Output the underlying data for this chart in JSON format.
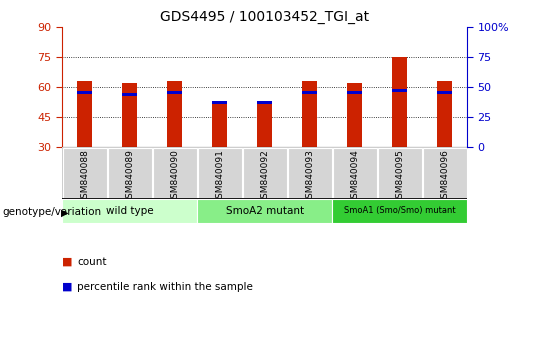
{
  "title": "GDS4495 / 100103452_TGI_at",
  "samples": [
    "GSM840088",
    "GSM840089",
    "GSM840090",
    "GSM840091",
    "GSM840092",
    "GSM840093",
    "GSM840094",
    "GSM840095",
    "GSM840096"
  ],
  "count_values": [
    63,
    62,
    63,
    52,
    52,
    63,
    62,
    75,
    63
  ],
  "percentile_values": [
    57,
    56,
    57,
    52,
    52,
    57,
    57,
    58,
    57
  ],
  "ylim_left": [
    30,
    90
  ],
  "yticks_left": [
    30,
    45,
    60,
    75,
    90
  ],
  "ylim_right": [
    0,
    100
  ],
  "yticks_right": [
    0,
    25,
    50,
    75,
    100
  ],
  "grid_values": [
    45,
    60,
    75
  ],
  "groups": [
    {
      "label": "wild type",
      "start": 0,
      "end": 3,
      "color": "#ccffcc"
    },
    {
      "label": "SmoA2 mutant",
      "start": 3,
      "end": 6,
      "color": "#88ee88"
    },
    {
      "label": "SmoA1 (Smo/Smo) mutant",
      "start": 6,
      "end": 9,
      "color": "#33cc33"
    }
  ],
  "bar_color": "#cc2200",
  "percentile_color": "#0000cc",
  "bar_width": 0.35,
  "tick_label_color_left": "#cc2200",
  "tick_label_color_right": "#0000cc",
  "genotype_label": "genotype/variation",
  "legend_count": "count",
  "legend_percentile": "percentile rank within the sample",
  "sample_label_area_color": "#cccccc",
  "sample_cell_color": "#d5d5d5"
}
